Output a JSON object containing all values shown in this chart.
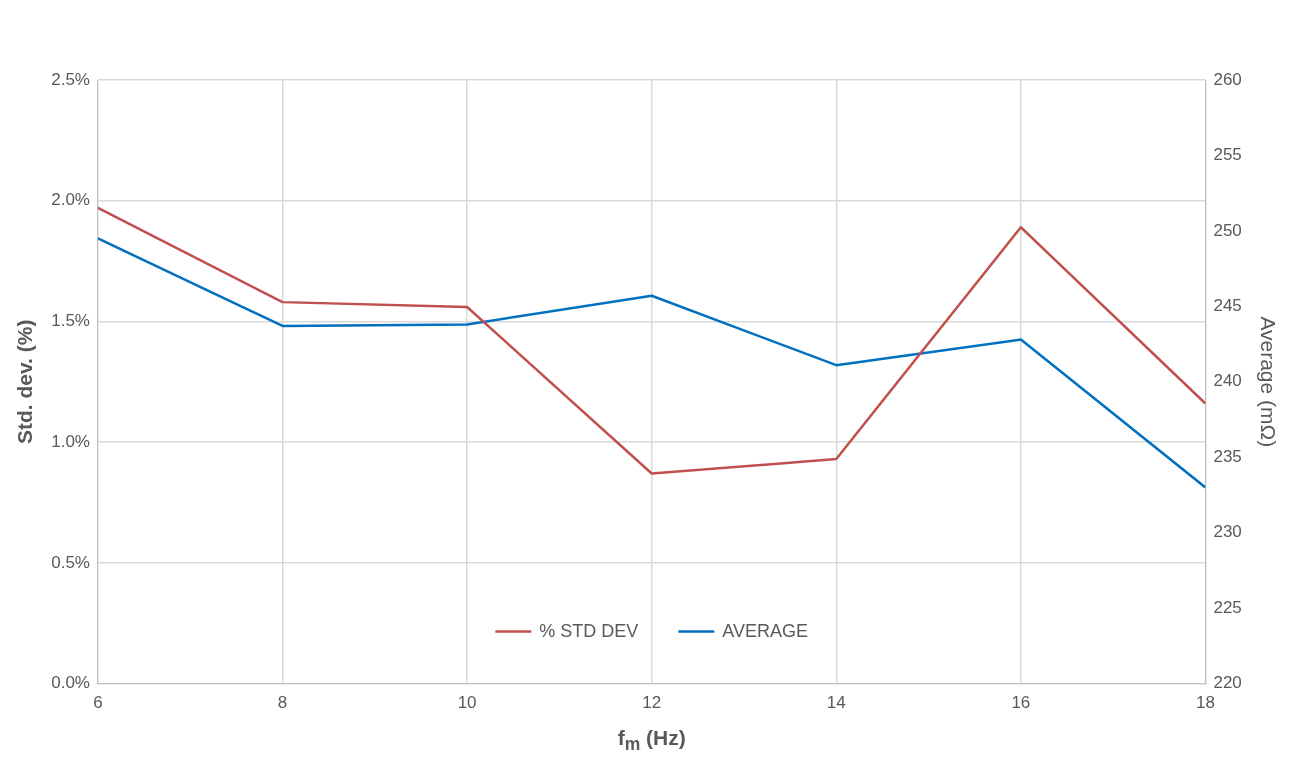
{
  "chart_data": {
    "type": "line",
    "xlabel": "f$_{m}$ (Hz)",
    "ylabel": "Std. dev. (%)",
    "y2label": "Average (mΩ)",
    "x": [
      6,
      8,
      10,
      12,
      14,
      16,
      18
    ],
    "series": [
      {
        "name": "% STD DEV",
        "color": "#c0504d",
        "values": [
          1.97,
          1.58,
          1.56,
          0.87,
          0.93,
          1.89,
          1.16
        ]
      },
      {
        "name": "AVERAGE",
        "color": "#0070c0",
        "axis": "y2",
        "values": [
          249.5,
          243.7,
          243.8,
          245.7,
          241.1,
          242.8,
          233.0
        ]
      }
    ],
    "xlim": [
      6,
      18
    ],
    "xticks": [
      6,
      8,
      10,
      12,
      14,
      16,
      18
    ],
    "ylim": [
      0,
      2.5
    ],
    "yticks": [
      {
        "value": 0,
        "label": "0.0%"
      },
      {
        "value": 0.5,
        "label": "0.5%"
      },
      {
        "value": 1,
        "label": "1.0%"
      },
      {
        "value": 1.5,
        "label": "1.5%"
      },
      {
        "value": 2,
        "label": "2.0%"
      },
      {
        "value": 2.5,
        "label": "2.5%"
      }
    ],
    "y2lim": [
      220,
      260
    ],
    "y2ticks": [
      220,
      225,
      230,
      235,
      240,
      245,
      250,
      255,
      260
    ],
    "grid": true,
    "legend": "bottom",
    "marker": "none",
    "line_style": "solid"
  }
}
